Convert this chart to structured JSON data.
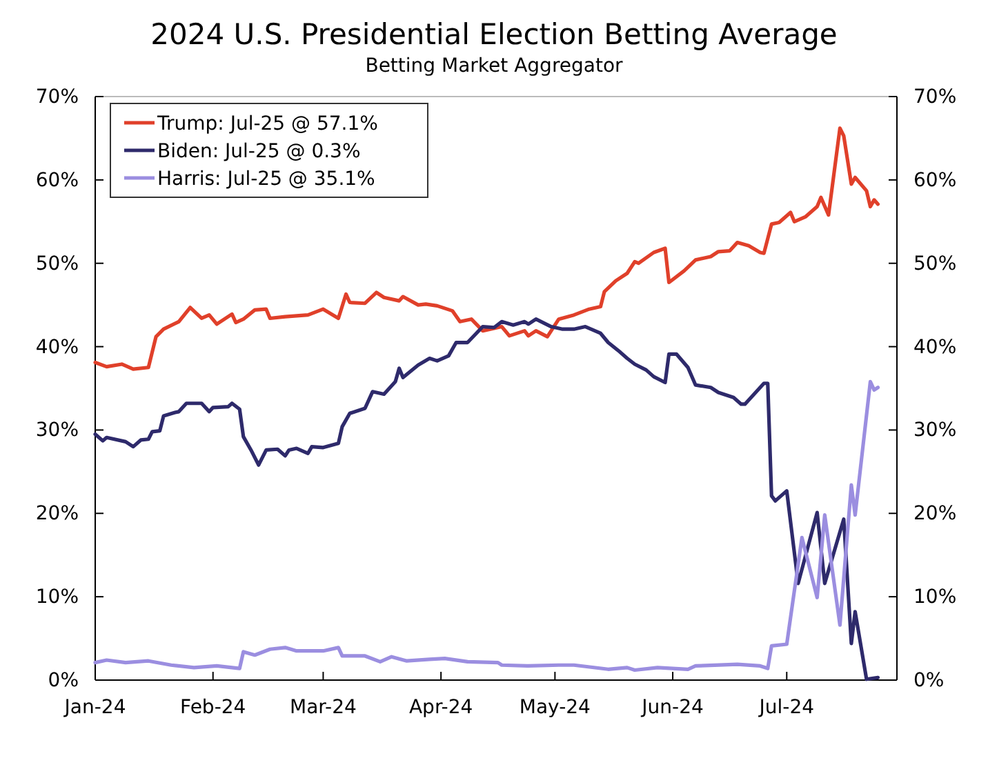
{
  "chart_data": {
    "type": "line",
    "title": "2024 U.S. Presidential Election Betting Average",
    "subtitle": "Betting Market Aggregator",
    "xlim": [
      "2024-01-01",
      "2024-07-30"
    ],
    "xticks": [
      {
        "value": "2024-01-01",
        "label": "Jan-24"
      },
      {
        "value": "2024-02-01",
        "label": "Feb-24"
      },
      {
        "value": "2024-03-01",
        "label": "Mar-24"
      },
      {
        "value": "2024-04-01",
        "label": "Apr-24"
      },
      {
        "value": "2024-05-01",
        "label": "May-24"
      },
      {
        "value": "2024-06-01",
        "label": "Jun-24"
      },
      {
        "value": "2024-07-01",
        "label": "Jul-24"
      }
    ],
    "ylim": [
      0,
      70
    ],
    "yticks": [
      {
        "value": 0,
        "label": "0%"
      },
      {
        "value": 10,
        "label": "10%"
      },
      {
        "value": 20,
        "label": "20%"
      },
      {
        "value": 30,
        "label": "30%"
      },
      {
        "value": 40,
        "label": "40%"
      },
      {
        "value": 50,
        "label": "50%"
      },
      {
        "value": 60,
        "label": "60%"
      },
      {
        "value": 70,
        "label": "70%"
      }
    ],
    "y2lim": [
      0,
      70
    ],
    "y2ticks": [
      {
        "value": 0,
        "label": "0%"
      },
      {
        "value": 10,
        "label": "10%"
      },
      {
        "value": 20,
        "label": "20%"
      },
      {
        "value": 30,
        "label": "30%"
      },
      {
        "value": 40,
        "label": "40%"
      },
      {
        "value": 50,
        "label": "50%"
      },
      {
        "value": 60,
        "label": "60%"
      },
      {
        "value": 70,
        "label": "70%"
      }
    ],
    "grid": false,
    "legend": "top left",
    "marker": "none",
    "line_style": "solid",
    "series": [
      {
        "name": "Trump: Jul-25 @ 57.1%",
        "color": "#e0402a",
        "x": [
          "2024-01-01",
          "2024-01-04",
          "2024-01-08",
          "2024-01-11",
          "2024-01-15",
          "2024-01-17",
          "2024-01-19",
          "2024-01-23",
          "2024-01-26",
          "2024-01-29",
          "2024-01-31",
          "2024-02-02",
          "2024-02-06",
          "2024-02-07",
          "2024-02-09",
          "2024-02-12",
          "2024-02-15",
          "2024-02-16",
          "2024-02-20",
          "2024-02-26",
          "2024-03-01",
          "2024-03-05",
          "2024-03-07",
          "2024-03-08",
          "2024-03-12",
          "2024-03-15",
          "2024-03-17",
          "2024-03-21",
          "2024-03-22",
          "2024-03-26",
          "2024-03-28",
          "2024-03-31",
          "2024-04-04",
          "2024-04-06",
          "2024-04-09",
          "2024-04-12",
          "2024-04-17",
          "2024-04-19",
          "2024-04-23",
          "2024-04-24",
          "2024-04-26",
          "2024-04-29",
          "2024-05-02",
          "2024-05-06",
          "2024-05-10",
          "2024-05-13",
          "2024-05-14",
          "2024-05-17",
          "2024-05-20",
          "2024-05-22",
          "2024-05-23",
          "2024-05-27",
          "2024-05-30",
          "2024-05-31",
          "2024-06-04",
          "2024-06-07",
          "2024-06-11",
          "2024-06-13",
          "2024-06-16",
          "2024-06-18",
          "2024-06-21",
          "2024-06-24",
          "2024-06-25",
          "2024-06-27",
          "2024-06-29",
          "2024-07-02",
          "2024-07-03",
          "2024-07-06",
          "2024-07-09",
          "2024-07-10",
          "2024-07-12",
          "2024-07-15",
          "2024-07-16",
          "2024-07-18",
          "2024-07-19",
          "2024-07-22",
          "2024-07-23",
          "2024-07-24",
          "2024-07-25"
        ],
        "values": [
          38.1,
          37.6,
          37.9,
          37.3,
          37.5,
          41.2,
          42.1,
          43.0,
          44.7,
          43.4,
          43.8,
          42.7,
          43.9,
          42.9,
          43.3,
          44.4,
          44.5,
          43.4,
          43.6,
          43.8,
          44.5,
          43.4,
          46.3,
          45.3,
          45.2,
          46.5,
          45.9,
          45.5,
          46.0,
          45.0,
          45.1,
          44.9,
          44.3,
          43.0,
          43.3,
          41.9,
          42.4,
          41.3,
          41.9,
          41.3,
          41.9,
          41.2,
          43.3,
          43.8,
          44.5,
          44.8,
          46.6,
          47.9,
          48.8,
          50.2,
          50.0,
          51.3,
          51.8,
          47.7,
          49.1,
          50.4,
          50.8,
          51.4,
          51.5,
          52.5,
          52.1,
          51.3,
          51.2,
          54.7,
          54.9,
          56.1,
          55.0,
          55.6,
          56.8,
          57.9,
          55.8,
          66.2,
          65.3,
          59.5,
          60.3,
          58.7,
          56.8,
          57.6,
          57.1
        ]
      },
      {
        "name": "Biden: Jul-25 @ 0.3%",
        "color": "#2e2a6b",
        "x": [
          "2024-01-01",
          "2024-01-03",
          "2024-01-04",
          "2024-01-09",
          "2024-01-11",
          "2024-01-13",
          "2024-01-15",
          "2024-01-16",
          "2024-01-18",
          "2024-01-19",
          "2024-01-22",
          "2024-01-23",
          "2024-01-25",
          "2024-01-29",
          "2024-01-31",
          "2024-02-01",
          "2024-02-05",
          "2024-02-06",
          "2024-02-08",
          "2024-02-09",
          "2024-02-11",
          "2024-02-13",
          "2024-02-15",
          "2024-02-18",
          "2024-02-20",
          "2024-02-21",
          "2024-02-23",
          "2024-02-26",
          "2024-02-27",
          "2024-03-01",
          "2024-03-05",
          "2024-03-06",
          "2024-03-08",
          "2024-03-12",
          "2024-03-14",
          "2024-03-17",
          "2024-03-20",
          "2024-03-21",
          "2024-03-22",
          "2024-03-26",
          "2024-03-29",
          "2024-03-31",
          "2024-04-03",
          "2024-04-05",
          "2024-04-08",
          "2024-04-12",
          "2024-04-15",
          "2024-04-17",
          "2024-04-20",
          "2024-04-23",
          "2024-04-24",
          "2024-04-26",
          "2024-04-30",
          "2024-05-03",
          "2024-05-06",
          "2024-05-09",
          "2024-05-13",
          "2024-05-15",
          "2024-05-18",
          "2024-05-20",
          "2024-05-22",
          "2024-05-25",
          "2024-05-27",
          "2024-05-30",
          "2024-05-31",
          "2024-06-02",
          "2024-06-05",
          "2024-06-07",
          "2024-06-11",
          "2024-06-13",
          "2024-06-17",
          "2024-06-19",
          "2024-06-20",
          "2024-06-25",
          "2024-06-26",
          "2024-06-27",
          "2024-06-28",
          "2024-07-01",
          "2024-07-04",
          "2024-07-09",
          "2024-07-11",
          "2024-07-16",
          "2024-07-18",
          "2024-07-19",
          "2024-07-22",
          "2024-07-25"
        ],
        "values": [
          29.5,
          28.7,
          29.1,
          28.6,
          28.0,
          28.8,
          28.9,
          29.8,
          29.9,
          31.7,
          32.1,
          32.2,
          33.2,
          33.2,
          32.2,
          32.7,
          32.8,
          33.2,
          32.5,
          29.2,
          27.6,
          25.8,
          27.6,
          27.7,
          26.9,
          27.6,
          27.8,
          27.2,
          28.0,
          27.9,
          28.4,
          30.4,
          32.0,
          32.6,
          34.6,
          34.3,
          35.8,
          37.4,
          36.3,
          37.8,
          38.6,
          38.3,
          38.9,
          40.5,
          40.5,
          42.4,
          42.3,
          43.0,
          42.6,
          43.0,
          42.7,
          43.3,
          42.4,
          42.1,
          42.1,
          42.4,
          41.6,
          40.5,
          39.4,
          38.6,
          37.9,
          37.2,
          36.4,
          35.7,
          39.1,
          39.1,
          37.5,
          35.4,
          35.1,
          34.5,
          33.9,
          33.1,
          33.1,
          35.6,
          35.6,
          22.1,
          21.5,
          22.7,
          11.6,
          20.1,
          11.6,
          19.3,
          4.4,
          8.2,
          0.1,
          0.3
        ]
      },
      {
        "name": "Harris: Jul-25 @ 35.1%",
        "color": "#9b8ee0",
        "x": [
          "2024-01-01",
          "2024-01-04",
          "2024-01-09",
          "2024-01-15",
          "2024-01-21",
          "2024-01-27",
          "2024-02-02",
          "2024-02-08",
          "2024-02-09",
          "2024-02-12",
          "2024-02-16",
          "2024-02-20",
          "2024-02-23",
          "2024-03-01",
          "2024-03-05",
          "2024-03-06",
          "2024-03-12",
          "2024-03-16",
          "2024-03-19",
          "2024-03-23",
          "2024-03-29",
          "2024-04-02",
          "2024-04-08",
          "2024-04-16",
          "2024-04-17",
          "2024-04-24",
          "2024-05-02",
          "2024-05-06",
          "2024-05-15",
          "2024-05-20",
          "2024-05-22",
          "2024-05-28",
          "2024-06-05",
          "2024-06-07",
          "2024-06-18",
          "2024-06-24",
          "2024-06-26",
          "2024-06-27",
          "2024-07-01",
          "2024-07-05",
          "2024-07-09",
          "2024-07-11",
          "2024-07-15",
          "2024-07-18",
          "2024-07-19",
          "2024-07-23",
          "2024-07-24",
          "2024-07-25"
        ],
        "values": [
          2.1,
          2.4,
          2.1,
          2.3,
          1.8,
          1.5,
          1.7,
          1.4,
          3.4,
          3.0,
          3.7,
          3.9,
          3.5,
          3.5,
          3.9,
          2.9,
          2.9,
          2.2,
          2.8,
          2.3,
          2.5,
          2.6,
          2.2,
          2.1,
          1.8,
          1.7,
          1.8,
          1.8,
          1.3,
          1.5,
          1.2,
          1.5,
          1.3,
          1.7,
          1.9,
          1.7,
          1.4,
          4.1,
          4.3,
          17.1,
          9.9,
          19.8,
          6.6,
          23.4,
          19.8,
          35.8,
          34.8,
          35.1
        ]
      }
    ]
  }
}
